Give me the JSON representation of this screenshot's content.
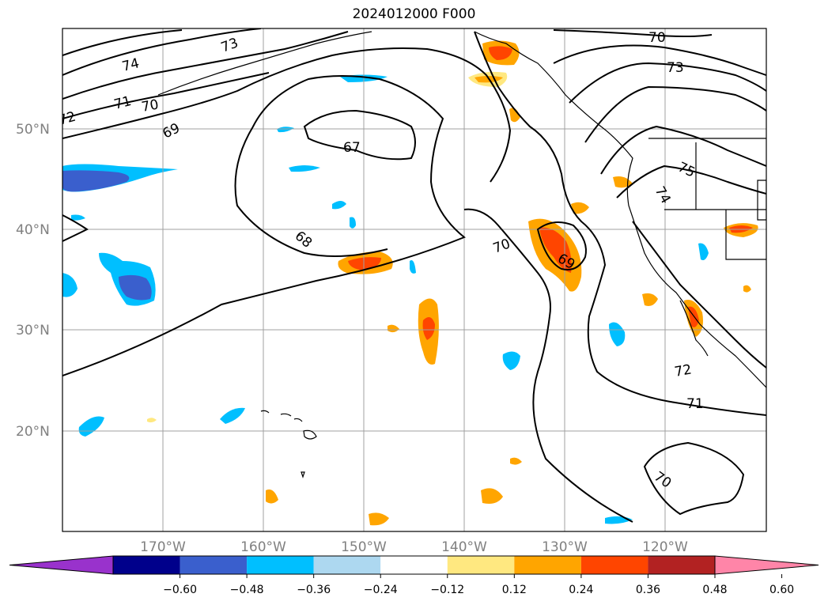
{
  "title": "2024012000 F000",
  "map": {
    "lon_labels": [
      "170°W",
      "160°W",
      "150°W",
      "140°W",
      "130°W",
      "120°W"
    ],
    "lat_labels": [
      "50°N",
      "40°N",
      "30°N",
      "20°N"
    ],
    "contour_labels": [
      "74",
      "73",
      "72",
      "71",
      "70",
      "69",
      "67",
      "68",
      "70",
      "69",
      "70",
      "73",
      "75",
      "74",
      "72",
      "71",
      "70"
    ],
    "colors": {
      "contour": "#000000",
      "grid": "#a0a0a0",
      "coast": "#000000"
    }
  },
  "colorbar": {
    "ticks": [
      "−0.60",
      "−0.48",
      "−0.36",
      "−0.24",
      "−0.12",
      "0.12",
      "0.24",
      "0.36",
      "0.48",
      "0.60"
    ],
    "colors": [
      "#9932cc",
      "#00008b",
      "#3a5fcd",
      "#00bfff",
      "#add8f0",
      "#ffffff",
      "#ffe880",
      "#ffa500",
      "#ff4500",
      "#b22222",
      "#ff85a8"
    ]
  }
}
